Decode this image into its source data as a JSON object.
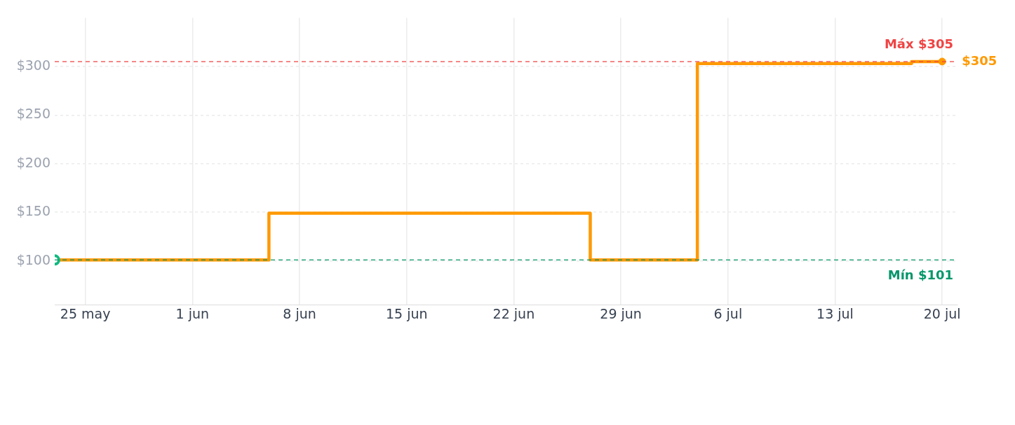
{
  "chart_data": {
    "type": "step",
    "x": [
      "--05-23",
      "--06-06",
      "--06-27",
      "--07-04",
      "--07-18",
      "--07-20"
    ],
    "series": [
      {
        "color": "#ff9900",
        "values": [
          101,
          149,
          101,
          303,
          305,
          305
        ],
        "marker": "none"
      },
      {
        "type": "scatter",
        "color": "#10b981",
        "x": [
          "--05-23"
        ],
        "values": [
          101
        ],
        "marker": "circle"
      },
      {
        "type": "scatter",
        "color": "#ff9900",
        "x": [
          "--07-20"
        ],
        "values": [
          305
        ],
        "marker": "circle"
      }
    ],
    "xlim": [
      "--05-23",
      "--07-21"
    ],
    "xticks": [
      {
        "value": "--05-25",
        "label": "25 may"
      },
      {
        "value": "--06-01",
        "label": "1 jun"
      },
      {
        "value": "--06-08",
        "label": "8 jun"
      },
      {
        "value": "--06-15",
        "label": "15 jun"
      },
      {
        "value": "--06-22",
        "label": "22 jun"
      },
      {
        "value": "--06-29",
        "label": "29 jun"
      },
      {
        "value": "--07-06",
        "label": "6 jul"
      },
      {
        "value": "--07-13",
        "label": "13 jul"
      },
      {
        "value": "--07-20",
        "label": "20 jul"
      }
    ],
    "ylim": [
      55,
      350
    ],
    "yticks": [
      {
        "value": 100,
        "label": "$100"
      },
      {
        "value": 150,
        "label": "$150"
      },
      {
        "value": 200,
        "label": "$200"
      },
      {
        "value": 250,
        "label": "$250"
      },
      {
        "value": 300,
        "label": "$300"
      }
    ],
    "ref_lines": [
      {
        "axis": "y",
        "value": 305,
        "label": "Máx $305",
        "color": "#ef4444",
        "line_style": "dashed"
      },
      {
        "axis": "y",
        "value": 101,
        "label": "Mín $101",
        "color": "#059669",
        "line_style": "dashed"
      }
    ],
    "annotations": [
      {
        "text": "$305",
        "x": "--07-20",
        "y": 305
      }
    ],
    "grid": true,
    "legend": false
  }
}
